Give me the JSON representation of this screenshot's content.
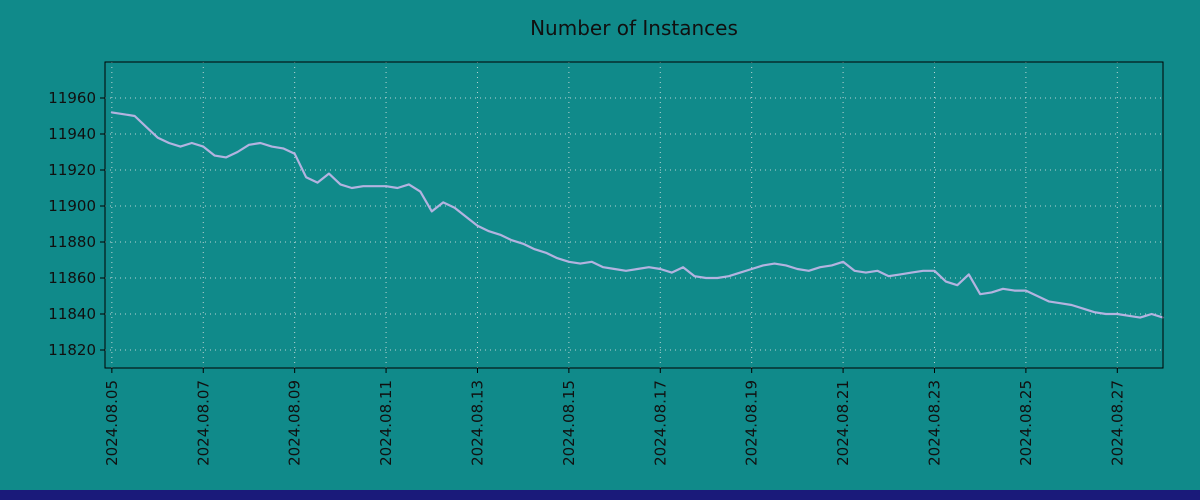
{
  "colors": {
    "background": "#108a8a",
    "line": "#b3b3e0",
    "grid": "#d8e2e2",
    "axis": "#000000",
    "text": "#101010",
    "footer": "#1a1a7a"
  },
  "chart_data": {
    "type": "line",
    "title": "Number of Instances",
    "xlabel": "",
    "ylabel": "",
    "x_domain": [
      -0.15,
      23.0
    ],
    "y_domain": [
      11810,
      11980
    ],
    "x_step_days": 0.25,
    "y_ticks": [
      11820,
      11840,
      11860,
      11880,
      11900,
      11920,
      11940,
      11960
    ],
    "x_ticks": {
      "days": [
        0,
        2,
        4,
        6,
        8,
        10,
        12,
        14,
        16,
        18,
        20,
        22
      ],
      "labels": [
        "2024.08.05",
        "2024.08.07",
        "2024.08.09",
        "2024.08.11",
        "2024.08.13",
        "2024.08.15",
        "2024.08.17",
        "2024.08.19",
        "2024.08.21",
        "2024.08.23",
        "2024.08.25",
        "2024.08.27"
      ]
    },
    "legend": null,
    "grid": true,
    "values": [
      11952,
      11951,
      11950,
      11944,
      11938,
      11935,
      11933,
      11935,
      11933,
      11928,
      11927,
      11930,
      11934,
      11935,
      11933,
      11932,
      11929,
      11916,
      11913,
      11918,
      11912,
      11910,
      11911,
      11911,
      11911,
      11910,
      11912,
      11908,
      11897,
      11902,
      11899,
      11894,
      11889,
      11886,
      11884,
      11881,
      11879,
      11876,
      11874,
      11871,
      11869,
      11868,
      11869,
      11866,
      11865,
      11864,
      11865,
      11866,
      11865,
      11863,
      11866,
      11861,
      11860,
      11860,
      11861,
      11863,
      11865,
      11867,
      11868,
      11867,
      11865,
      11864,
      11866,
      11867,
      11869,
      11864,
      11863,
      11864,
      11861,
      11862,
      11863,
      11864,
      11864,
      11858,
      11856,
      11862,
      11851,
      11852,
      11854,
      11853,
      11853,
      11850,
      11847,
      11846,
      11845,
      11843,
      11841,
      11840,
      11840,
      11839,
      11838,
      11840,
      11838
    ]
  }
}
